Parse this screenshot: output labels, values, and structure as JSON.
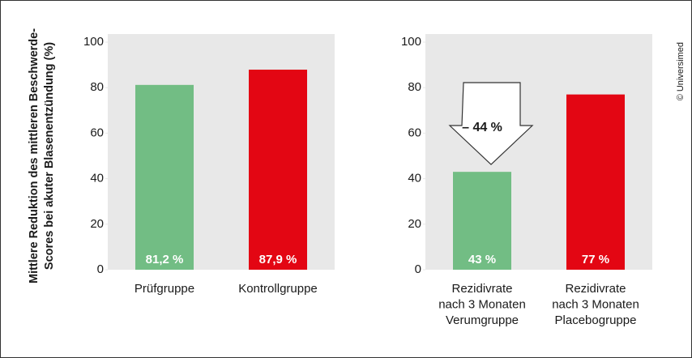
{
  "credit": "© Universimed",
  "chart_data": [
    {
      "type": "bar",
      "ylabel": "Mittlere Reduktion des mittleren Beschwerde-\nScores bei akuter Blasenentzündung (%)",
      "categories": [
        "Prüfgruppe",
        "Kontrollgruppe"
      ],
      "values": [
        81.2,
        87.9
      ],
      "value_labels": [
        "81,2 %",
        "87,9 %"
      ],
      "colors": [
        "#72bd84",
        "#e30613"
      ],
      "ylim": [
        0,
        100
      ],
      "yticks": [
        0,
        20,
        40,
        60,
        80,
        100
      ]
    },
    {
      "type": "bar",
      "categories": [
        "Rezidivrate\nnach 3 Monaten\nVerumgruppe",
        "Rezidivrate\nnach 3 Monaten\nPlacebogruppe"
      ],
      "values": [
        43,
        77
      ],
      "value_labels": [
        "43 %",
        "77 %"
      ],
      "colors": [
        "#72bd84",
        "#e30613"
      ],
      "annotation": "– 44 %",
      "ylim": [
        0,
        100
      ],
      "yticks": [
        0,
        20,
        40,
        60,
        80,
        100
      ]
    }
  ]
}
